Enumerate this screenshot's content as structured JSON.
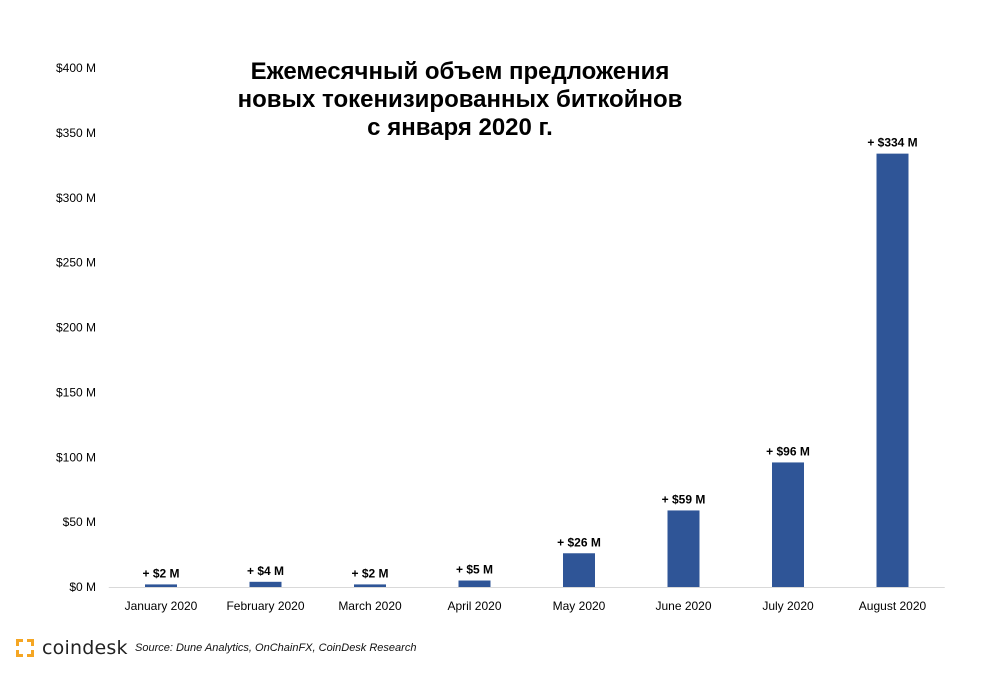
{
  "chart_data": {
    "type": "bar",
    "title_lines": [
      "Ежемесячный объем предложения",
      "новых токенизированных биткойнов",
      "с января 2020 г."
    ],
    "categories": [
      "January 2020",
      "February 2020",
      "March 2020",
      "April 2020",
      "May 2020",
      "June 2020",
      "July 2020",
      "August 2020"
    ],
    "values": [
      2,
      4,
      2,
      5,
      26,
      59,
      96,
      334
    ],
    "data_labels": [
      "+ $2 M",
      "+ $4 M",
      "+ $2 M",
      "+ $5 M",
      "+ $26 M",
      "+ $59 M",
      "+ $96 M",
      "+ $334 M"
    ],
    "yticks": [
      0,
      50,
      100,
      150,
      200,
      250,
      300,
      350,
      400
    ],
    "ytick_labels": [
      "$0 M",
      "$50 M",
      "$100 M",
      "$150 M",
      "$200 M",
      "$250 M",
      "$300 M",
      "$350 M",
      "$400 M"
    ],
    "ylim": [
      0,
      400
    ],
    "bar_color": "#2f5597",
    "grid": false
  },
  "footer": {
    "brand": "coindesk",
    "brand_color": "#f5a623",
    "source": "Source: Dune Analytics, OnChainFX, CoinDesk Research"
  }
}
